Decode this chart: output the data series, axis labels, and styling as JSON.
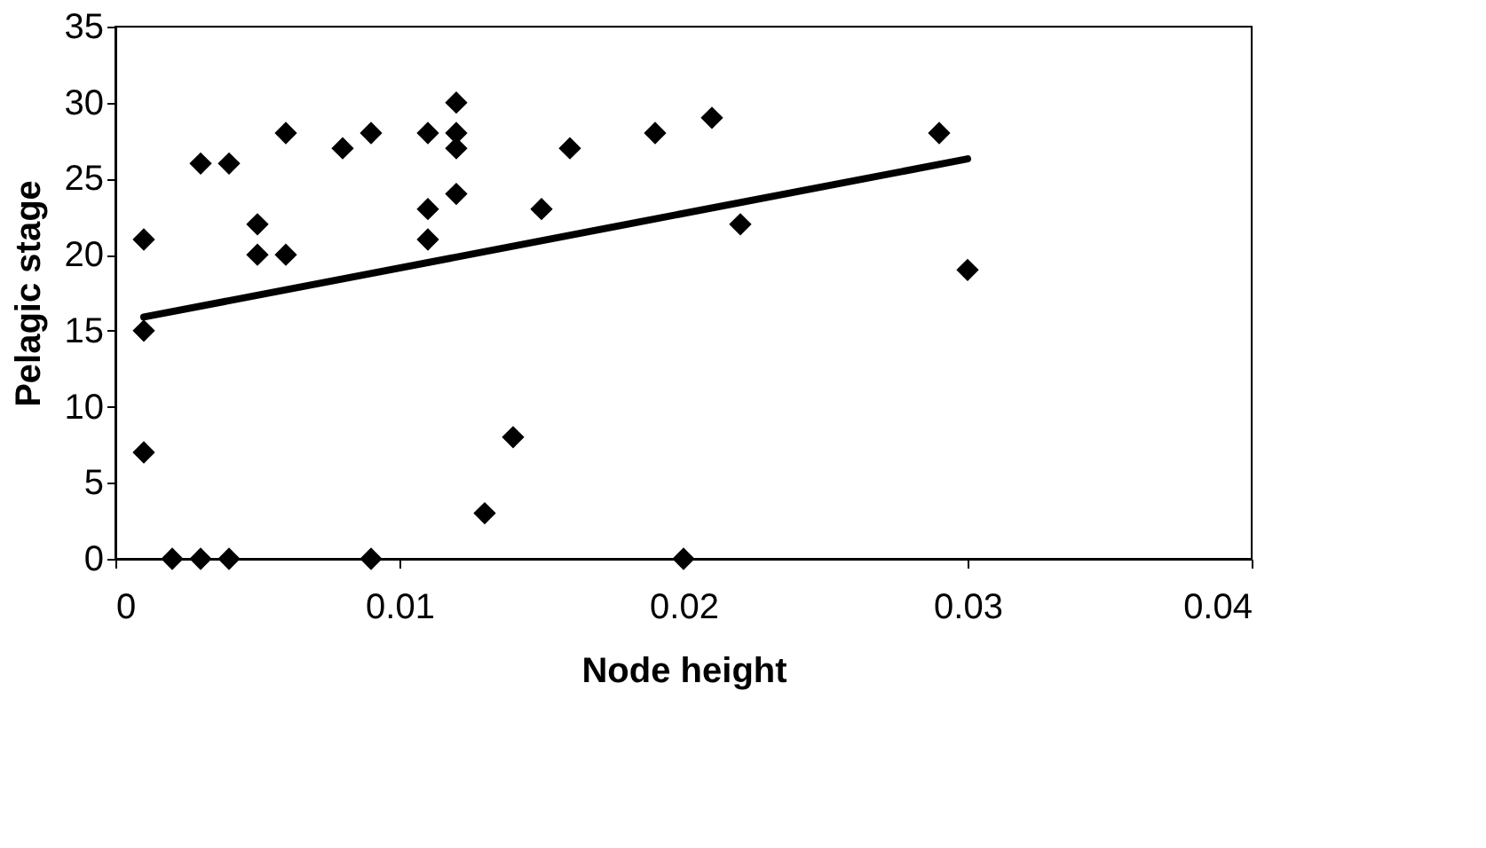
{
  "chart_data": {
    "type": "scatter",
    "xlabel": "Node height",
    "ylabel": "Pelagic stage",
    "xlim": [
      0,
      0.04
    ],
    "xticks": [
      0,
      0.01,
      0.02,
      0.03,
      0.04
    ],
    "ylim": [
      0,
      35
    ],
    "yticks": [
      0,
      5,
      10,
      15,
      20,
      25,
      30,
      35
    ],
    "grid": false,
    "legend": false,
    "series": [
      {
        "color": "#000000",
        "marker": "diamond",
        "x": [
          0.001,
          0.001,
          0.001,
          0.002,
          0.003,
          0.004,
          0.009,
          0.003,
          0.004,
          0.005,
          0.005,
          0.006,
          0.006,
          0.008,
          0.009,
          0.011,
          0.011,
          0.011,
          0.012,
          0.012,
          0.012,
          0.012,
          0.013,
          0.014,
          0.02,
          0.015,
          0.016,
          0.019,
          0.021,
          0.022,
          0.029,
          0.03
        ],
        "values": [
          21,
          15,
          7,
          0,
          0,
          0,
          0,
          26,
          26,
          22,
          20,
          20,
          28,
          27,
          28,
          28,
          23,
          21,
          30,
          28,
          27,
          24,
          3,
          8,
          0,
          23,
          27,
          28,
          29,
          22,
          28,
          19
        ]
      },
      {
        "type": "line",
        "marker": "none",
        "color": "#000000",
        "x": [
          0.001,
          0.03
        ],
        "values": [
          15.9,
          26.3
        ]
      }
    ]
  }
}
